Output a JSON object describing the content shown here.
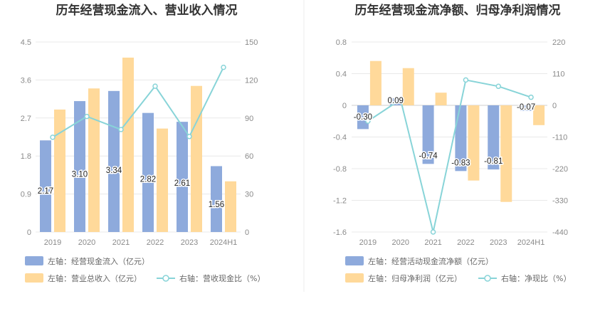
{
  "chart_data": [
    {
      "type": "bar",
      "title": "历年经营现金流入、营业收入情况",
      "categories": [
        "2019",
        "2020",
        "2021",
        "2022",
        "2023",
        "2024H1"
      ],
      "left_axis": {
        "ylim": [
          0,
          4.5
        ],
        "ticks": [
          "4.5",
          "3.6",
          "2.7",
          "1.8",
          "0.9",
          "0"
        ]
      },
      "right_axis": {
        "ylim": [
          0,
          150
        ],
        "ticks": [
          "150",
          "120",
          "90",
          "60",
          "30",
          "0"
        ]
      },
      "series": [
        {
          "name": "左轴：经营现金流入（亿元）",
          "type": "bar",
          "axis": "left",
          "color": "#8eaadc",
          "values": [
            2.17,
            3.1,
            3.34,
            2.82,
            2.61,
            1.56
          ],
          "labels": [
            "2.17",
            "3.10",
            "3.34",
            "2.82",
            "2.61",
            "1.56"
          ]
        },
        {
          "name": "左轴：营业总收入（亿元）",
          "type": "bar",
          "axis": "left",
          "color": "#ffd99a",
          "values": [
            2.9,
            3.4,
            4.13,
            2.45,
            3.46,
            1.2
          ]
        },
        {
          "name": "右轴：营收现金比（%）",
          "type": "line",
          "axis": "right",
          "color": "#88d4d8",
          "values": [
            74.8,
            91.2,
            80.9,
            115.1,
            75.4,
            130.0
          ]
        }
      ]
    },
    {
      "type": "bar",
      "title": "历年经营现金流净额、归母净利润情况",
      "categories": [
        "2019",
        "2020",
        "2021",
        "2022",
        "2023",
        "2024H1"
      ],
      "left_axis": {
        "ylim": [
          -1.6,
          0.8
        ],
        "ticks": [
          "0.8",
          "0.4",
          "0",
          "-0.4",
          "-0.8",
          "-1.2",
          "-1.6"
        ]
      },
      "right_axis": {
        "ylim": [
          -440,
          220
        ],
        "ticks": [
          "220",
          "110",
          "0",
          "-110",
          "-220",
          "-330",
          "-440"
        ]
      },
      "series": [
        {
          "name": "左轴：经营活动现金流净额（亿元）",
          "type": "bar",
          "axis": "left",
          "color": "#8eaadc",
          "values": [
            -0.3,
            0.09,
            -0.74,
            -0.83,
            -0.81,
            -0.07
          ],
          "labels": [
            "-0.30",
            "0.09",
            "-0.74",
            "-0.83",
            "-0.81",
            "-0.07"
          ]
        },
        {
          "name": "左轴：归母净利润（亿元）",
          "type": "bar",
          "axis": "left",
          "color": "#ffd99a",
          "values": [
            0.56,
            0.47,
            0.16,
            -0.95,
            -1.22,
            -0.25
          ]
        },
        {
          "name": "右轴：净现比（%）",
          "type": "line",
          "axis": "right",
          "color": "#88d4d8",
          "values": [
            -55,
            20,
            -440,
            88,
            66,
            28
          ]
        }
      ]
    }
  ]
}
